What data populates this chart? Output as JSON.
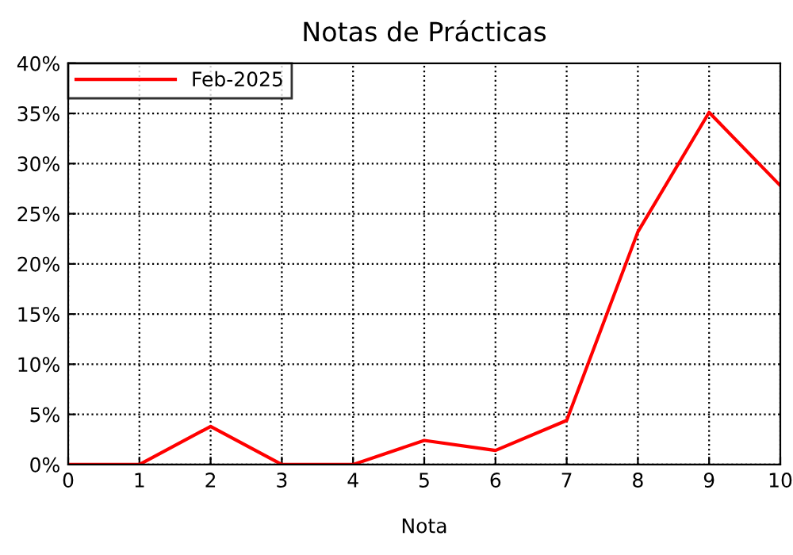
{
  "chart_data": {
    "type": "line",
    "title": "Notas de Prácticas",
    "xlabel": "Nota",
    "x": [
      0,
      1,
      2,
      3,
      4,
      5,
      6,
      7,
      8,
      9,
      10
    ],
    "series": [
      {
        "name": "Feb-2025",
        "color": "#ff0000",
        "values": [
          0,
          0,
          3.8,
          0,
          0,
          2.4,
          1.4,
          4.4,
          23.2,
          35.1,
          27.8
        ]
      }
    ],
    "xlim": [
      0,
      10
    ],
    "xticks": [
      0,
      1,
      2,
      3,
      4,
      5,
      6,
      7,
      8,
      9,
      10
    ],
    "ylim": [
      0,
      40
    ],
    "yticks": [
      {
        "value": 0,
        "label": "0%"
      },
      {
        "value": 5,
        "label": "5%"
      },
      {
        "value": 10,
        "label": "10%"
      },
      {
        "value": 15,
        "label": "15%"
      },
      {
        "value": 20,
        "label": "20%"
      },
      {
        "value": 25,
        "label": "25%"
      },
      {
        "value": 30,
        "label": "30%"
      },
      {
        "value": 35,
        "label": "35%"
      },
      {
        "value": 40,
        "label": "40%"
      }
    ],
    "grid": true,
    "legend": "top left",
    "marker": "none",
    "line_style": "solid"
  }
}
